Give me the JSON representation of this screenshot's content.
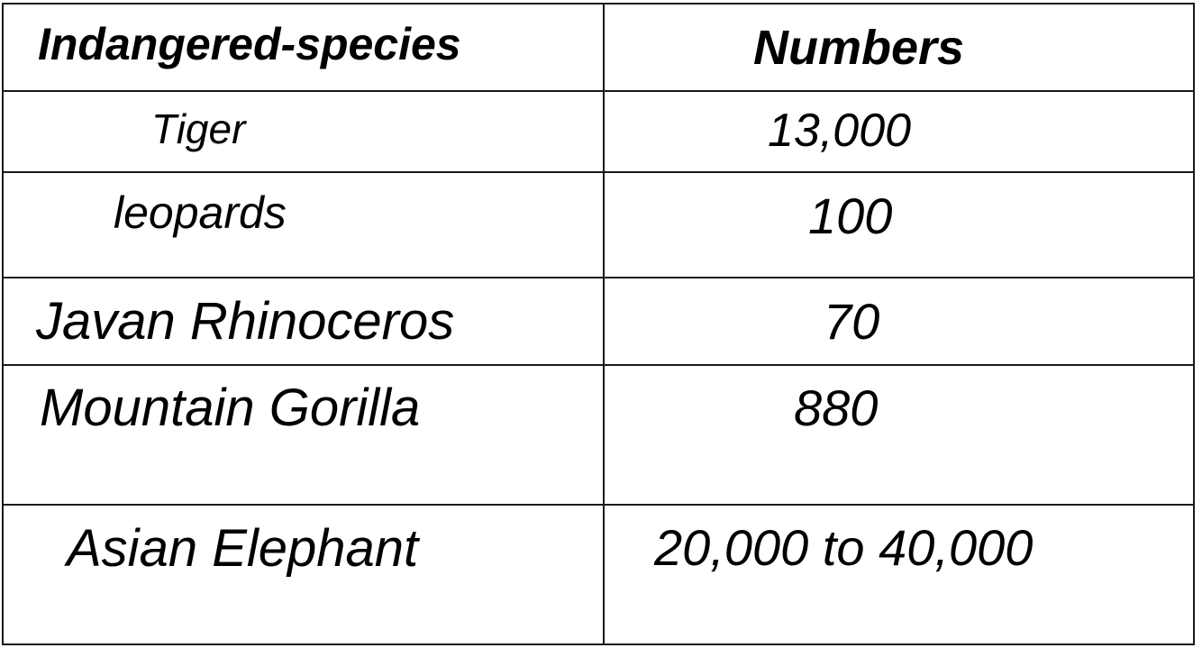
{
  "chart_data": {
    "type": "table",
    "columns": [
      "Indangered-species",
      "Numbers"
    ],
    "rows": [
      {
        "species": "Tiger",
        "number": "13,000"
      },
      {
        "species": "leopards",
        "number": "100"
      },
      {
        "species": "Javan Rhinoceros",
        "number": "70"
      },
      {
        "species": "Mountain Gorilla",
        "number": "880"
      },
      {
        "species": "Asian Elephant",
        "number": "20,000 to 40,000"
      }
    ]
  }
}
